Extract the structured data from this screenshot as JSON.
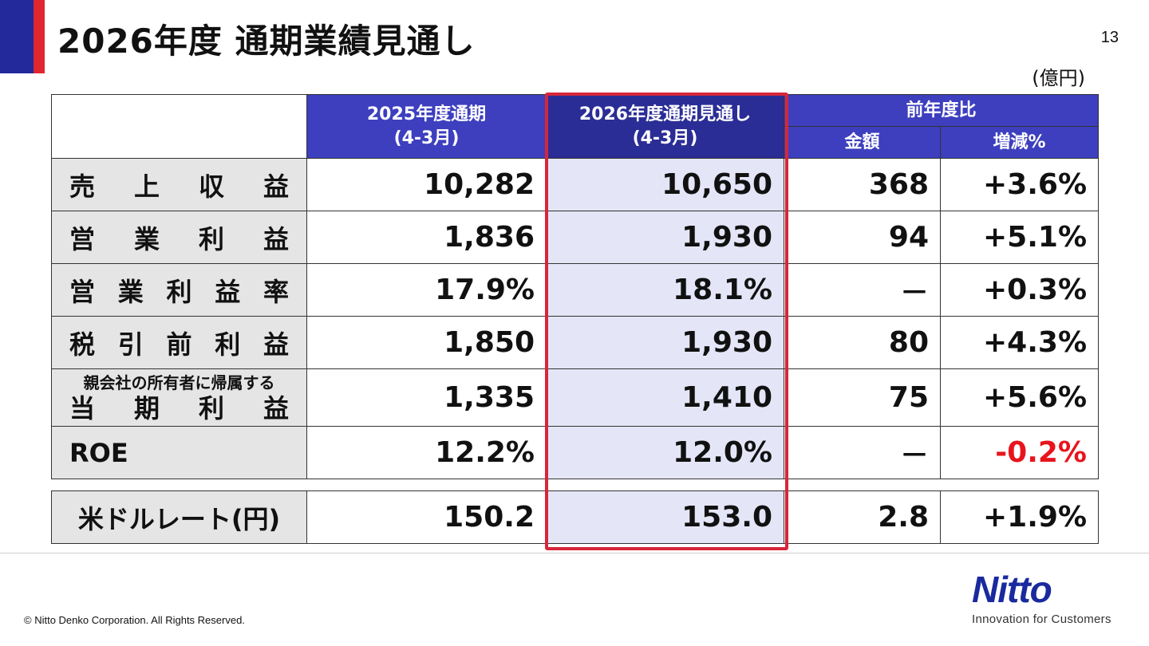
{
  "title": "2026年度 通期業績見通し",
  "page_number": "13",
  "unit": "(億円)",
  "headers": {
    "prev_year": "2025年度通期",
    "prev_year_period": "(4-3月)",
    "forecast": "2026年度通期見通し",
    "forecast_period": "(4-3月)",
    "yoy": "前年度比",
    "amount": "金額",
    "change_pct": "増減%"
  },
  "rows": [
    {
      "label": "売上収益",
      "prev": "10,282",
      "forecast": "10,650",
      "amount": "368",
      "pct": "+3.6%"
    },
    {
      "label": "営業利益",
      "prev": "1,836",
      "forecast": "1,930",
      "amount": "94",
      "pct": "+5.1%"
    },
    {
      "label": "営業利益率",
      "prev": "17.9%",
      "forecast": "18.1%",
      "amount": "－",
      "pct": "+0.3%"
    },
    {
      "label": "税引前利益",
      "prev": "1,850",
      "forecast": "1,930",
      "amount": "80",
      "pct": "+4.3%"
    },
    {
      "label_small": "親会社の所有者に帰属する",
      "label": "当期利益",
      "prev": "1,335",
      "forecast": "1,410",
      "amount": "75",
      "pct": "+5.6%"
    },
    {
      "label": "ROE",
      "prev": "12.2%",
      "forecast": "12.0%",
      "amount": "－",
      "pct": "-0.2%"
    }
  ],
  "fx_row": {
    "label": "米ドルレート(円)",
    "prev": "150.2",
    "forecast": "153.0",
    "amount": "2.8",
    "pct": "+1.9%"
  },
  "colors": {
    "accent_blue": "#23289a",
    "accent_red": "#e0262f",
    "header": "#3d3fbf",
    "highlight": "#e4e6f8",
    "negative": "#e8141c",
    "frame": "#d6263a"
  },
  "footer": {
    "copyright": "© Nitto Denko Corporation. All Rights Reserved."
  },
  "logo": {
    "name": "Nitto",
    "tagline": "Innovation for Customers"
  }
}
